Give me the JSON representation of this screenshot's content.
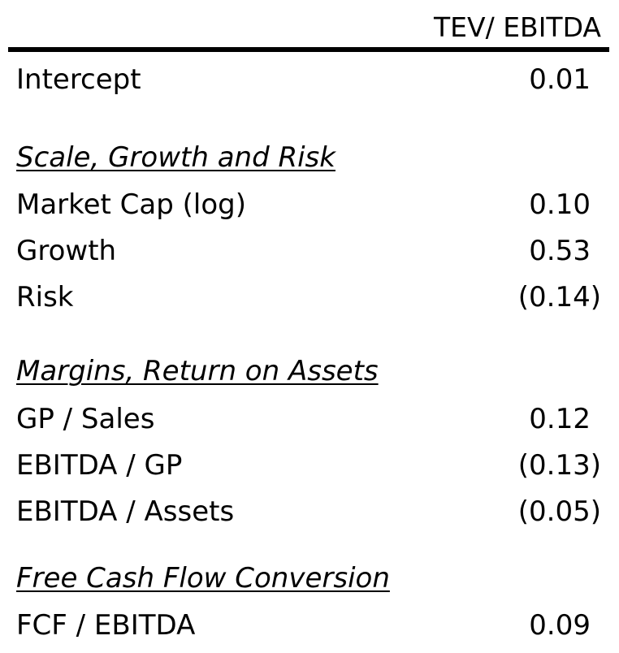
{
  "table": {
    "column_header": "TEV/ EBITDA",
    "intercept": {
      "label": "Intercept",
      "value": "0.01"
    },
    "sections": [
      {
        "title": "Scale, Growth and Risk",
        "rows": [
          {
            "label": "Market Cap (log)",
            "value": "0.10"
          },
          {
            "label": "Growth",
            "value": "0.53"
          },
          {
            "label": "Risk",
            "value": "(0.14)"
          }
        ]
      },
      {
        "title": "Margins, Return on Assets",
        "rows": [
          {
            "label": "GP / Sales",
            "value": "0.12"
          },
          {
            "label": "EBITDA / GP",
            "value": "(0.13)"
          },
          {
            "label": "EBITDA / Assets",
            "value": "(0.05)"
          }
        ]
      },
      {
        "title": "Free Cash Flow Conversion",
        "rows": [
          {
            "label": "FCF / EBITDA",
            "value": "0.09"
          }
        ]
      }
    ]
  }
}
